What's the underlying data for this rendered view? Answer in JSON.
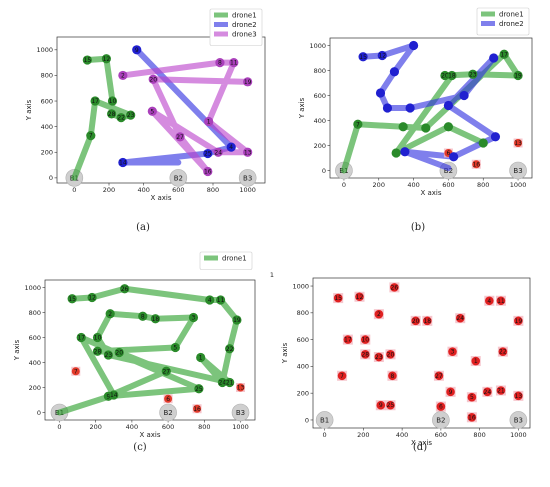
{
  "chart_data": [
    {
      "panel": "a",
      "caption": "(a)",
      "type": "scatter",
      "xlabel": "X axis",
      "ylabel": "Y axis",
      "xlim": [
        -100,
        1100
      ],
      "ylim": [
        -40,
        1100
      ],
      "xticks": [
        0,
        200,
        400,
        600,
        800,
        1000
      ],
      "yticks": [
        0,
        200,
        400,
        600,
        800,
        1000
      ],
      "legend": {
        "placement": "top-right",
        "entries": [
          "drone1",
          "drone2",
          "drone3"
        ]
      },
      "bases": [
        {
          "label": "B1",
          "x": 0,
          "y": 0
        },
        {
          "label": "B2",
          "x": 600,
          "y": 0
        },
        {
          "label": "B3",
          "x": 1000,
          "y": 0
        }
      ],
      "series": [
        {
          "name": "drone1",
          "color": "#2ca02c",
          "node_color": "#2a8a2a",
          "points": [
            {
              "label": "15",
              "x": 75,
              "y": 920
            },
            {
              "label": "12",
              "x": 185,
              "y": 930
            },
            {
              "label": "10",
              "x": 220,
              "y": 600
            },
            {
              "label": "28",
              "x": 215,
              "y": 500
            },
            {
              "label": "22",
              "x": 270,
              "y": 470
            },
            {
              "label": "23",
              "x": 325,
              "y": 490
            },
            {
              "label": "17",
              "x": 120,
              "y": 600
            },
            {
              "label": "7",
              "x": 95,
              "y": 330
            },
            {
              "label": "B1",
              "x": 0,
              "y": 0
            }
          ]
        },
        {
          "name": "drone2",
          "color": "#3030e0",
          "node_color": "#2020d0",
          "points": [
            {
              "label": "9",
              "x": 360,
              "y": 1000
            },
            {
              "label": "4",
              "x": 905,
              "y": 240
            },
            {
              "label": "25",
              "x": 770,
              "y": 190
            },
            {
              "label": "14",
              "x": 280,
              "y": 120
            },
            {
              "label": "B2",
              "x": 600,
              "y": 120
            }
          ]
        },
        {
          "name": "drone3",
          "color": "#bb44cc",
          "node_color": "#aa40bb",
          "points": [
            {
              "label": "2",
              "x": 280,
              "y": 800
            },
            {
              "label": "8",
              "x": 840,
              "y": 900
            },
            {
              "label": "11",
              "x": 920,
              "y": 900
            },
            {
              "label": "1",
              "x": 775,
              "y": 440
            },
            {
              "label": "13",
              "x": 1000,
              "y": 200
            },
            {
              "label": "24",
              "x": 830,
              "y": 200
            },
            {
              "label": "5",
              "x": 450,
              "y": 520
            },
            {
              "label": "16",
              "x": 770,
              "y": 50
            },
            {
              "label": "27",
              "x": 610,
              "y": 320
            },
            {
              "label": "20",
              "x": 455,
              "y": 770
            },
            {
              "label": "19",
              "x": 1000,
              "y": 750
            }
          ]
        }
      ]
    },
    {
      "panel": "b",
      "caption": "(b)",
      "type": "scatter",
      "xlabel": "X axis",
      "ylabel": "Y axis",
      "xlim": [
        -80,
        1080
      ],
      "ylim": [
        -60,
        1060
      ],
      "xticks": [
        0,
        200,
        400,
        600,
        800,
        1000
      ],
      "yticks": [
        0,
        200,
        400,
        600,
        800,
        1000
      ],
      "legend": {
        "placement": "top-right",
        "entries": [
          "drone1",
          "drone2"
        ]
      },
      "bases": [
        {
          "label": "B1",
          "x": 0,
          "y": 0
        },
        {
          "label": "B2",
          "x": 600,
          "y": 0
        },
        {
          "label": "B3",
          "x": 1000,
          "y": 0
        }
      ],
      "unvisited": [
        {
          "label": "6",
          "x": 600,
          "y": 140
        },
        {
          "label": "16",
          "x": 760,
          "y": 50
        },
        {
          "label": "13",
          "x": 1000,
          "y": 220
        }
      ],
      "series": [
        {
          "name": "drone1",
          "color": "#2ca02c",
          "node_color": "#2a8a2a",
          "points": [
            {
              "label": "B1",
              "x": 0,
              "y": 0
            },
            {
              "label": "7",
              "x": 80,
              "y": 370
            },
            {
              "label": "",
              "x": 340,
              "y": 350
            },
            {
              "label": "",
              "x": 470,
              "y": 340
            },
            {
              "label": "17",
              "x": 920,
              "y": 930
            },
            {
              "label": "19",
              "x": 1000,
              "y": 760
            },
            {
              "label": "23",
              "x": 740,
              "y": 770
            },
            {
              "label": "20",
              "x": 580,
              "y": 760
            },
            {
              "label": "18",
              "x": 620,
              "y": 760
            },
            {
              "label": "",
              "x": 300,
              "y": 140
            },
            {
              "label": "",
              "x": 600,
              "y": 350
            },
            {
              "label": "",
              "x": 800,
              "y": 220
            }
          ]
        },
        {
          "name": "drone2",
          "color": "#3030e0",
          "node_color": "#2020d0",
          "points": [
            {
              "label": "15",
              "x": 110,
              "y": 910
            },
            {
              "label": "12",
              "x": 220,
              "y": 920
            },
            {
              "label": "",
              "x": 400,
              "y": 1000
            },
            {
              "label": "",
              "x": 290,
              "y": 790
            },
            {
              "label": "",
              "x": 210,
              "y": 620
            },
            {
              "label": "",
              "x": 250,
              "y": 500
            },
            {
              "label": "",
              "x": 380,
              "y": 500
            },
            {
              "label": "",
              "x": 690,
              "y": 600
            },
            {
              "label": "",
              "x": 860,
              "y": 900
            },
            {
              "label": "",
              "x": 600,
              "y": 520
            },
            {
              "label": "",
              "x": 870,
              "y": 270
            },
            {
              "label": "",
              "x": 630,
              "y": 110
            },
            {
              "label": "",
              "x": 350,
              "y": 150
            },
            {
              "label": "B2",
              "x": 600,
              "y": 20
            }
          ]
        }
      ]
    },
    {
      "panel": "c",
      "caption": "(c)",
      "type": "scatter",
      "xlabel": "X axis",
      "ylabel": "Y axis",
      "xlim": [
        -80,
        1080
      ],
      "ylim": [
        -60,
        1060
      ],
      "xticks": [
        0,
        200,
        400,
        600,
        800,
        1000
      ],
      "yticks": [
        0,
        200,
        400,
        600,
        800,
        1000
      ],
      "legend": {
        "placement": "top-right",
        "entries": [
          "drone1"
        ]
      },
      "bases": [
        {
          "label": "B1",
          "x": 0,
          "y": 0
        },
        {
          "label": "B2",
          "x": 600,
          "y": 0
        },
        {
          "label": "B3",
          "x": 1000,
          "y": 0
        }
      ],
      "unvisited": [
        {
          "label": "7",
          "x": 90,
          "y": 330
        },
        {
          "label": "6",
          "x": 600,
          "y": 110
        },
        {
          "label": "16",
          "x": 760,
          "y": 30
        },
        {
          "label": "13",
          "x": 1000,
          "y": 200
        }
      ],
      "series": [
        {
          "name": "drone1",
          "color": "#2ca02c",
          "node_color": "#2a8a2a",
          "points": [
            {
              "label": "15",
              "x": 70,
              "y": 910
            },
            {
              "label": "12",
              "x": 180,
              "y": 920
            },
            {
              "label": "26",
              "x": 360,
              "y": 990
            },
            {
              "label": "4",
              "x": 830,
              "y": 900
            },
            {
              "label": "11",
              "x": 890,
              "y": 900
            },
            {
              "label": "19",
              "x": 980,
              "y": 740
            },
            {
              "label": "22",
              "x": 940,
              "y": 510
            },
            {
              "label": "24",
              "x": 900,
              "y": 240
            },
            {
              "label": "1",
              "x": 780,
              "y": 440
            },
            {
              "label": "21",
              "x": 940,
              "y": 240
            },
            {
              "label": "23",
              "x": 270,
              "y": 460
            },
            {
              "label": "10",
              "x": 210,
              "y": 600
            },
            {
              "label": "2",
              "x": 280,
              "y": 790
            },
            {
              "label": "8",
              "x": 460,
              "y": 770
            },
            {
              "label": "18",
              "x": 530,
              "y": 750
            },
            {
              "label": "3",
              "x": 740,
              "y": 760
            },
            {
              "label": "5",
              "x": 640,
              "y": 520
            },
            {
              "label": "28",
              "x": 210,
              "y": 490
            },
            {
              "label": "20",
              "x": 330,
              "y": 480
            },
            {
              "label": "27",
              "x": 590,
              "y": 330
            },
            {
              "label": "9",
              "x": 270,
              "y": 130
            },
            {
              "label": "25",
              "x": 770,
              "y": 190
            },
            {
              "label": "17",
              "x": 120,
              "y": 600
            },
            {
              "label": "14",
              "x": 300,
              "y": 140
            },
            {
              "label": "B1",
              "x": 0,
              "y": 0
            }
          ]
        }
      ]
    },
    {
      "panel": "d",
      "caption": "(d)",
      "type": "scatter",
      "xlabel": "X axis",
      "ylabel": "Y axis",
      "xlim": [
        -60,
        1060
      ],
      "ylim": [
        -60,
        1060
      ],
      "xticks": [
        0,
        200,
        400,
        600,
        800,
        1000
      ],
      "yticks": [
        0,
        200,
        400,
        600,
        800,
        1000
      ],
      "bases": [
        {
          "label": "B1",
          "x": 0,
          "y": 0
        },
        {
          "label": "B2",
          "x": 600,
          "y": 0
        },
        {
          "label": "B3",
          "x": 1000,
          "y": 0
        }
      ],
      "series": [
        {
          "name": "",
          "color": "#e02020",
          "node_color": "#e02020",
          "points": [
            {
              "label": "15",
              "x": 70,
              "y": 910
            },
            {
              "label": "12",
              "x": 180,
              "y": 920
            },
            {
              "label": "26",
              "x": 360,
              "y": 990
            },
            {
              "label": "2",
              "x": 280,
              "y": 790
            },
            {
              "label": "4",
              "x": 850,
              "y": 890
            },
            {
              "label": "11",
              "x": 910,
              "y": 890
            },
            {
              "label": "19",
              "x": 1000,
              "y": 740
            },
            {
              "label": "20",
              "x": 470,
              "y": 740
            },
            {
              "label": "18",
              "x": 530,
              "y": 740
            },
            {
              "label": "24",
              "x": 700,
              "y": 760
            },
            {
              "label": "17",
              "x": 120,
              "y": 600
            },
            {
              "label": "10",
              "x": 210,
              "y": 600
            },
            {
              "label": "3",
              "x": 660,
              "y": 510
            },
            {
              "label": "22",
              "x": 920,
              "y": 510
            },
            {
              "label": "28",
              "x": 210,
              "y": 490
            },
            {
              "label": "23",
              "x": 280,
              "y": 470
            },
            {
              "label": "20",
              "x": 340,
              "y": 490
            },
            {
              "label": "1",
              "x": 780,
              "y": 440
            },
            {
              "label": "7",
              "x": 90,
              "y": 330
            },
            {
              "label": "8",
              "x": 350,
              "y": 330
            },
            {
              "label": "27",
              "x": 590,
              "y": 330
            },
            {
              "label": "9",
              "x": 650,
              "y": 210
            },
            {
              "label": "5",
              "x": 760,
              "y": 170
            },
            {
              "label": "24",
              "x": 840,
              "y": 210
            },
            {
              "label": "21",
              "x": 910,
              "y": 220
            },
            {
              "label": "13",
              "x": 1000,
              "y": 180
            },
            {
              "label": "9",
              "x": 290,
              "y": 110
            },
            {
              "label": "25",
              "x": 340,
              "y": 110
            },
            {
              "label": "6",
              "x": 600,
              "y": 100
            },
            {
              "label": "16",
              "x": 760,
              "y": 20
            }
          ]
        }
      ]
    }
  ],
  "stray_mark": "1"
}
